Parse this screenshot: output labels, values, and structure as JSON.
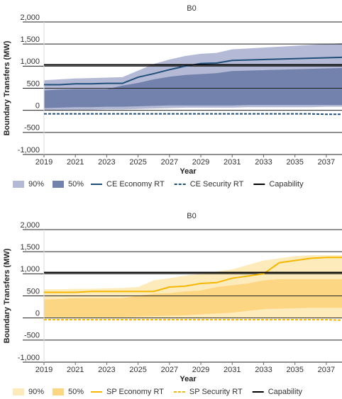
{
  "chart_data": [
    {
      "type": "line",
      "title": "B0",
      "x_label": "Year",
      "y_label": "Boundary Transfers (MW)",
      "x": [
        2019,
        2020,
        2021,
        2022,
        2023,
        2024,
        2025,
        2026,
        2027,
        2028,
        2029,
        2030,
        2031,
        2032,
        2033,
        2034,
        2035,
        2036,
        2037,
        2038
      ],
      "xlim": [
        2019,
        2038
      ],
      "xticks": [
        2019,
        2021,
        2023,
        2025,
        2027,
        2029,
        2031,
        2033,
        2035,
        2037
      ],
      "ylim": [
        -1000,
        2000
      ],
      "yticks": [
        {
          "value": -1000,
          "label": "-1,000"
        },
        -500,
        0,
        500,
        {
          "value": 1000,
          "label": "1,000"
        },
        {
          "value": 1500,
          "label": "1,500"
        },
        {
          "value": 2000,
          "label": "2,000"
        }
      ],
      "grid": true,
      "bands": [
        {
          "name": "90%",
          "color": "#b4bad5",
          "upper": [
            680,
            700,
            720,
            730,
            740,
            750,
            900,
            1050,
            1150,
            1230,
            1280,
            1300,
            1380,
            1400,
            1420,
            1440,
            1460,
            1480,
            1500,
            1520
          ],
          "lower": [
            0,
            0,
            10,
            10,
            20,
            20,
            30,
            40,
            50,
            60,
            60,
            60,
            60,
            70,
            70,
            70,
            70,
            70,
            80,
            80
          ]
        },
        {
          "name": "50%",
          "color": "#7282ad",
          "upper": [
            450,
            470,
            480,
            480,
            480,
            560,
            620,
            700,
            760,
            800,
            820,
            840,
            890,
            900,
            910,
            920,
            930,
            940,
            950,
            960
          ],
          "lower": [
            50,
            60,
            70,
            70,
            80,
            80,
            90,
            100,
            110,
            110,
            110,
            110,
            110,
            120,
            120,
            120,
            120,
            120,
            120,
            120
          ]
        }
      ],
      "series": [
        {
          "name": "CE Economy RT",
          "color": "#1f4e79",
          "dashed": false,
          "values": [
            580,
            580,
            600,
            600,
            610,
            610,
            750,
            830,
            920,
            1000,
            1060,
            1070,
            1130,
            1140,
            1150,
            1160,
            1170,
            1180,
            1190,
            1200
          ]
        },
        {
          "name": "CE Security RT",
          "color": "#1f4e79",
          "dashed": true,
          "values": [
            -80,
            -80,
            -80,
            -80,
            -80,
            -80,
            -80,
            -80,
            -80,
            -80,
            -80,
            -80,
            -80,
            -80,
            -80,
            -80,
            -80,
            -80,
            -90,
            -90
          ]
        },
        {
          "name": "Capability",
          "color": "#000000",
          "dashed": false,
          "values": [
            1030,
            1030,
            1030,
            1030,
            1030,
            1030,
            1030,
            1030,
            1030,
            1030,
            1030,
            1030,
            1030,
            1030,
            1030,
            1030,
            1030,
            1030,
            1030,
            1030
          ]
        }
      ]
    },
    {
      "type": "line",
      "title": "B0",
      "x_label": "Year",
      "y_label": "Boundary Transfers (MW)",
      "x": [
        2019,
        2020,
        2021,
        2022,
        2023,
        2024,
        2025,
        2026,
        2027,
        2028,
        2029,
        2030,
        2031,
        2032,
        2033,
        2034,
        2035,
        2036,
        2037,
        2038
      ],
      "xlim": [
        2019,
        2038
      ],
      "xticks": [
        2019,
        2021,
        2023,
        2025,
        2027,
        2029,
        2031,
        2033,
        2035,
        2037
      ],
      "ylim": [
        -1000,
        2000
      ],
      "yticks": [
        {
          "value": -1000,
          "label": "-1,000"
        },
        -500,
        0,
        500,
        {
          "value": 1000,
          "label": "1,000"
        },
        {
          "value": 1500,
          "label": "1,500"
        },
        {
          "value": 2000,
          "label": "2,000"
        }
      ],
      "grid": true,
      "bands": [
        {
          "name": "90%",
          "color": "#fdebbc",
          "upper": [
            650,
            650,
            660,
            660,
            670,
            680,
            700,
            850,
            900,
            960,
            1000,
            1050,
            1100,
            1200,
            1300,
            1350,
            1400,
            1420,
            1420,
            1420
          ],
          "lower": [
            0,
            0,
            0,
            0,
            0,
            0,
            0,
            0,
            0,
            0,
            0,
            0,
            0,
            0,
            0,
            0,
            0,
            0,
            0,
            0
          ]
        },
        {
          "name": "50%",
          "color": "#fcd683",
          "upper": [
            420,
            430,
            450,
            450,
            450,
            450,
            500,
            550,
            560,
            600,
            620,
            700,
            740,
            780,
            850,
            880,
            880,
            880,
            880,
            880
          ],
          "lower": [
            20,
            20,
            20,
            20,
            20,
            20,
            30,
            40,
            50,
            60,
            80,
            100,
            120,
            160,
            200,
            210,
            220,
            230,
            230,
            230
          ]
        }
      ],
      "series": [
        {
          "name": "SP Economy RT",
          "color": "#f5b700",
          "dashed": false,
          "values": [
            580,
            580,
            580,
            600,
            600,
            600,
            600,
            600,
            700,
            720,
            780,
            800,
            900,
            950,
            1000,
            1250,
            1300,
            1350,
            1370,
            1370
          ]
        },
        {
          "name": "SP Security RT",
          "color": "#f5b700",
          "dashed": true,
          "values": [
            -40,
            -40,
            -40,
            -40,
            -40,
            -40,
            -40,
            -40,
            -40,
            -40,
            -40,
            -40,
            -40,
            -40,
            -40,
            -40,
            -40,
            -40,
            -40,
            -50
          ]
        },
        {
          "name": "Capability",
          "color": "#000000",
          "dashed": false,
          "values": [
            1030,
            1030,
            1030,
            1030,
            1030,
            1030,
            1030,
            1030,
            1030,
            1030,
            1030,
            1030,
            1030,
            1030,
            1030,
            1030,
            1030,
            1030,
            1030,
            1030
          ]
        }
      ]
    }
  ]
}
